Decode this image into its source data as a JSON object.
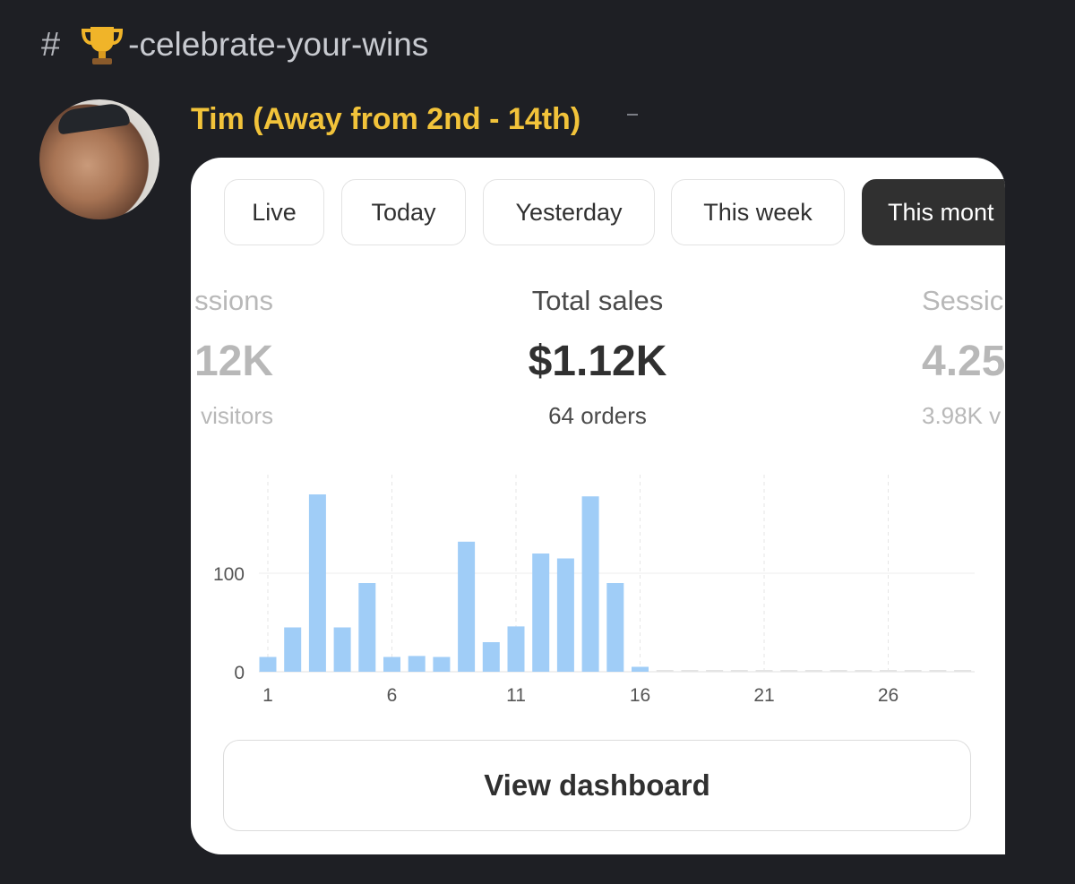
{
  "channel": {
    "name": "-celebrate-your-wins",
    "emoji_icon": "trophy-icon"
  },
  "message": {
    "author": "Tim (Away from 2nd - 14th)"
  },
  "tabs": [
    {
      "label": "Live"
    },
    {
      "label": "Today"
    },
    {
      "label": "Yesterday"
    },
    {
      "label": "This week"
    },
    {
      "label": "This mont",
      "active": true
    }
  ],
  "metrics": {
    "left": {
      "label": "ssions",
      "value": "12K",
      "sub": "visitors"
    },
    "center": {
      "label": "Total sales",
      "value": "$1.12K",
      "sub": "64 orders"
    },
    "right": {
      "label": "Sessic",
      "value": "4.25",
      "sub": "3.98K v"
    }
  },
  "button": {
    "label": "View dashboard"
  },
  "colors": {
    "bar": "#a0cdf7",
    "accent_name": "#f2c33a"
  },
  "chart_data": {
    "type": "bar",
    "x_ticks": [
      "1",
      "6",
      "11",
      "16",
      "21",
      "26"
    ],
    "y_ticks": [
      "0",
      "100"
    ],
    "ylim": [
      0,
      200
    ],
    "x": [
      1,
      2,
      3,
      4,
      5,
      6,
      7,
      8,
      9,
      10,
      11,
      12,
      13,
      14,
      15,
      16,
      17,
      18,
      19,
      20,
      21,
      22,
      23,
      24,
      25,
      26,
      27,
      28,
      29
    ],
    "values": [
      15,
      45,
      180,
      45,
      90,
      15,
      16,
      15,
      132,
      30,
      46,
      120,
      115,
      178,
      90,
      5,
      0,
      0,
      0,
      0,
      0,
      0,
      0,
      0,
      0,
      0,
      0,
      0,
      0
    ]
  }
}
